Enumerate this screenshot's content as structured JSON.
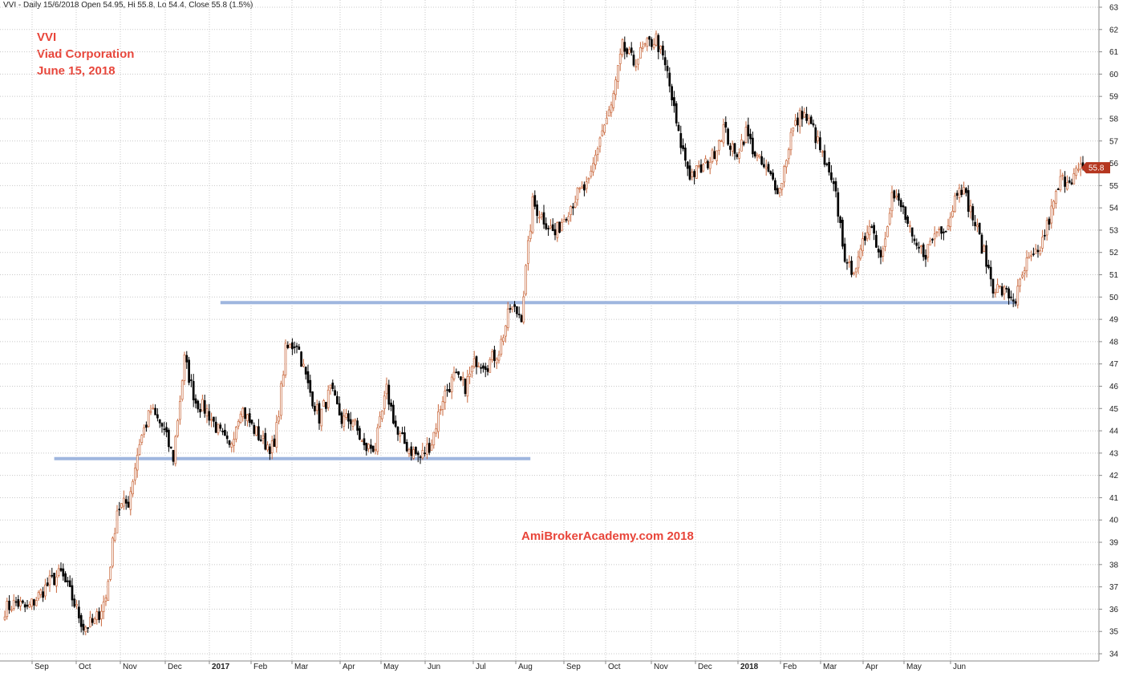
{
  "header": {
    "text": "VVI - Daily 15/6/2018 Open 54.95, Hi 55.8, Lo 54.4, Close 55.8 (1.5%)"
  },
  "title_lines": [
    "VVI",
    "Viad Corporation",
    "June 15, 2018"
  ],
  "watermark": "AmiBrokerAcademy.com  2018",
  "colors": {
    "up": "#c8663a",
    "down": "#000000",
    "support": "#9fb6df",
    "grid": "#c8c8c8",
    "price_tag": "#b5361f",
    "title": "#e8453a"
  },
  "chart_data": {
    "type": "candlestick",
    "ylim": [
      34,
      63
    ],
    "y_ticks": [
      34,
      35,
      36,
      37,
      38,
      39,
      40,
      41,
      42,
      43,
      44,
      45,
      46,
      47,
      48,
      49,
      50,
      51,
      52,
      53,
      54,
      55,
      56,
      57,
      58,
      59,
      60,
      61,
      62,
      63
    ],
    "x_ticks": [
      {
        "label": "Sep",
        "bold": false
      },
      {
        "label": "Oct",
        "bold": false
      },
      {
        "label": "Nov",
        "bold": false
      },
      {
        "label": "Dec",
        "bold": false
      },
      {
        "label": "2017",
        "bold": true
      },
      {
        "label": "Feb",
        "bold": false
      },
      {
        "label": "Mar",
        "bold": false
      },
      {
        "label": "Apr",
        "bold": false
      },
      {
        "label": "May",
        "bold": false
      },
      {
        "label": "Jun",
        "bold": false
      },
      {
        "label": "Jul",
        "bold": false
      },
      {
        "label": "Aug",
        "bold": false
      },
      {
        "label": "Sep",
        "bold": false
      },
      {
        "label": "Oct",
        "bold": false
      },
      {
        "label": "Nov",
        "bold": false
      },
      {
        "label": "Dec",
        "bold": false
      },
      {
        "label": "2018",
        "bold": true
      },
      {
        "label": "Feb",
        "bold": false
      },
      {
        "label": "Mar",
        "bold": false
      },
      {
        "label": "Apr",
        "bold": false
      },
      {
        "label": "May",
        "bold": false
      },
      {
        "label": "Jun",
        "bold": false
      }
    ],
    "close_path": [
      36.0,
      36.3,
      36.0,
      36.6,
      37.2,
      37.6,
      36.5,
      35.2,
      35.4,
      36.5,
      40.5,
      40.8,
      43.5,
      44.9,
      44.2,
      42.8,
      47.2,
      45.3,
      44.9,
      44.0,
      43.2,
      45.1,
      44.2,
      43.5,
      43.2,
      47.6,
      48.0,
      46.0,
      44.6,
      45.8,
      44.5,
      44.5,
      43.2,
      43.3,
      45.8,
      43.8,
      43.2,
      42.8,
      43.5,
      45.5,
      46.4,
      46.0,
      47.2,
      47.0,
      47.6,
      49.5,
      49.2,
      54.2,
      53.5,
      52.8,
      53.8,
      54.6,
      55.0,
      57.2,
      58.5,
      61.2,
      60.5,
      61.2,
      61.6,
      60.0,
      57.2,
      55.5,
      55.7,
      56.3,
      57.6,
      56.3,
      57.4,
      56.2,
      55.5,
      54.8,
      57.3,
      58.3,
      57.5,
      56.0,
      54.5,
      51.2,
      51.5,
      53.5,
      51.8,
      54.6,
      53.9,
      52.2,
      52.0,
      53.0,
      53.3,
      55.2,
      53.9,
      52.3,
      50.5,
      50.2,
      49.9,
      51.5,
      51.9,
      53.5,
      55.2,
      55.4,
      55.8
    ],
    "close_final": 55.8,
    "support_lines": [
      {
        "from_index": 22,
        "to_index": 234,
        "value": 42.75
      },
      {
        "from_index": 96,
        "to_index": 451,
        "value": 49.75
      }
    ]
  }
}
